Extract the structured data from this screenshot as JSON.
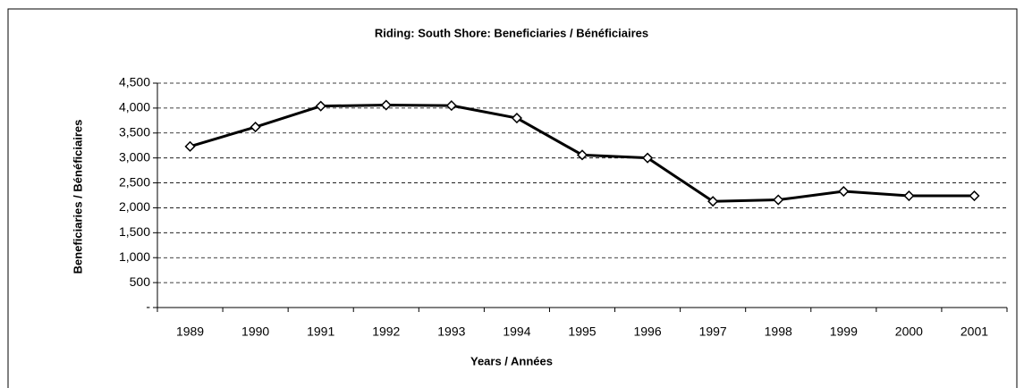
{
  "chart_data": {
    "type": "line",
    "title": "Riding:  South Shore:  Beneficiaries / Bénéficiaires",
    "x_label": "Years / Années",
    "y_label": "Beneficiaries / Bénéficiaires",
    "categories": [
      "1989",
      "1990",
      "1991",
      "1992",
      "1993",
      "1994",
      "1995",
      "1996",
      "1997",
      "1998",
      "1999",
      "2000",
      "2001"
    ],
    "values": [
      3230,
      3620,
      4040,
      4060,
      4050,
      3800,
      3060,
      3000,
      2130,
      2160,
      2330,
      2240,
      2240
    ],
    "color": "#000000",
    "ylim": [
      0,
      4500
    ],
    "yticks": [
      {
        "value": 0,
        "label": "-"
      },
      500,
      {
        "value": 1000,
        "label": "1,000"
      },
      {
        "value": 1500,
        "label": "1,500"
      },
      {
        "value": 2000,
        "label": "2,000"
      },
      {
        "value": 2500,
        "label": "2,500"
      },
      {
        "value": 3000,
        "label": "3,000"
      },
      {
        "value": 3500,
        "label": "3,500"
      },
      {
        "value": 4000,
        "label": "4,000"
      },
      {
        "value": 4500,
        "label": "4,500"
      }
    ],
    "grid": true
  }
}
